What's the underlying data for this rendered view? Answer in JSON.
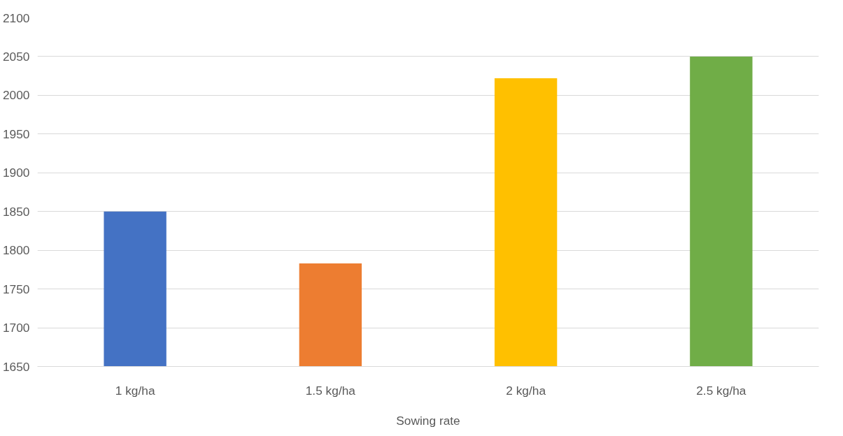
{
  "chart_data": {
    "type": "bar",
    "xlabel": "Sowing rate",
    "categories": [
      "1 kg/ha",
      "1.5 kg/ha",
      "2 kg/ha",
      "2.5 kg/ha"
    ],
    "values": [
      1850,
      1783,
      2022,
      2050
    ],
    "colors": [
      "#4472c4",
      "#ed7d31",
      "#ffc000",
      "#70ad47"
    ],
    "ylim": [
      1650,
      2100
    ],
    "yticks": [
      1650,
      1700,
      1750,
      1800,
      1850,
      1900,
      1950,
      2000,
      2050,
      2100
    ],
    "grid": "y"
  }
}
